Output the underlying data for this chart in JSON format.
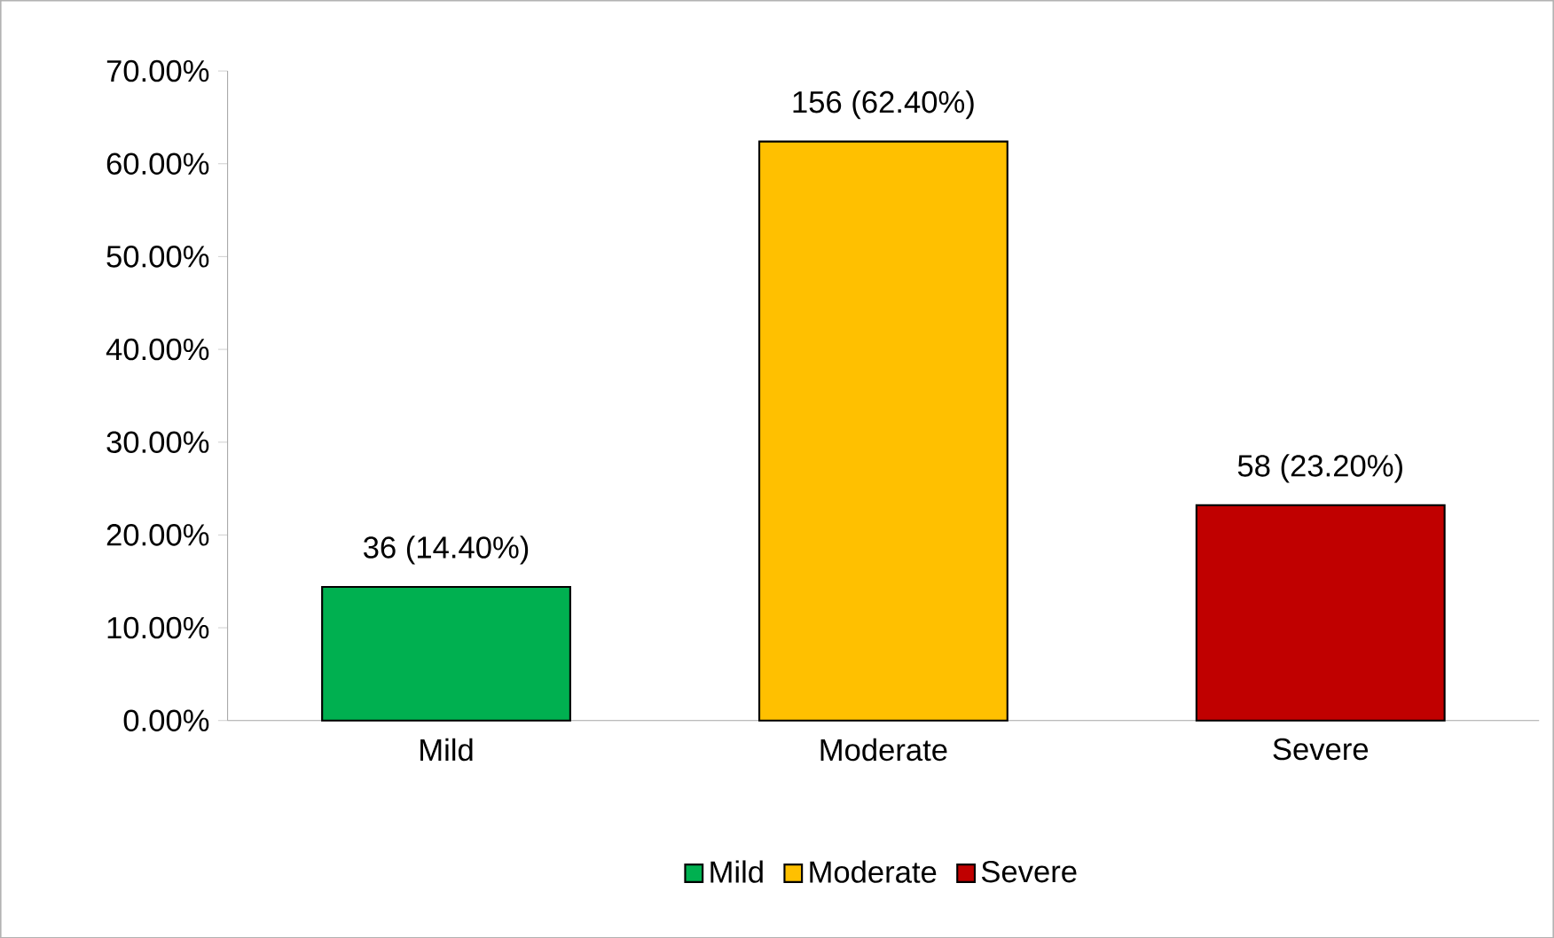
{
  "chart_data": {
    "type": "bar",
    "categories": [
      "Mild",
      "Moderate",
      "Severe"
    ],
    "series": [
      {
        "name": "Mild",
        "color": "#00b050",
        "values": [
          14.4,
          null,
          null
        ],
        "value_labels": [
          "36 (14.40%)",
          null,
          null
        ]
      },
      {
        "name": "Moderate",
        "color": "#ffc000",
        "values": [
          null,
          62.4,
          null
        ],
        "value_labels": [
          null,
          "156 (62.40%)",
          null
        ]
      },
      {
        "name": "Severe",
        "color": "#c00000",
        "values": [
          null,
          null,
          23.2
        ],
        "value_labels": [
          null,
          null,
          "58 (23.20%)"
        ]
      }
    ],
    "ylim": [
      0,
      70
    ],
    "yticks": [
      {
        "value": 0,
        "label": "0.00%"
      },
      {
        "value": 10,
        "label": "10.00%"
      },
      {
        "value": 20,
        "label": "20.00%"
      },
      {
        "value": 30,
        "label": "30.00%"
      },
      {
        "value": 40,
        "label": "40.00%"
      },
      {
        "value": 50,
        "label": "50.00%"
      },
      {
        "value": 60,
        "label": "60.00%"
      },
      {
        "value": 70,
        "label": "70.00%"
      }
    ],
    "legend": "bottom",
    "grid": false
  }
}
